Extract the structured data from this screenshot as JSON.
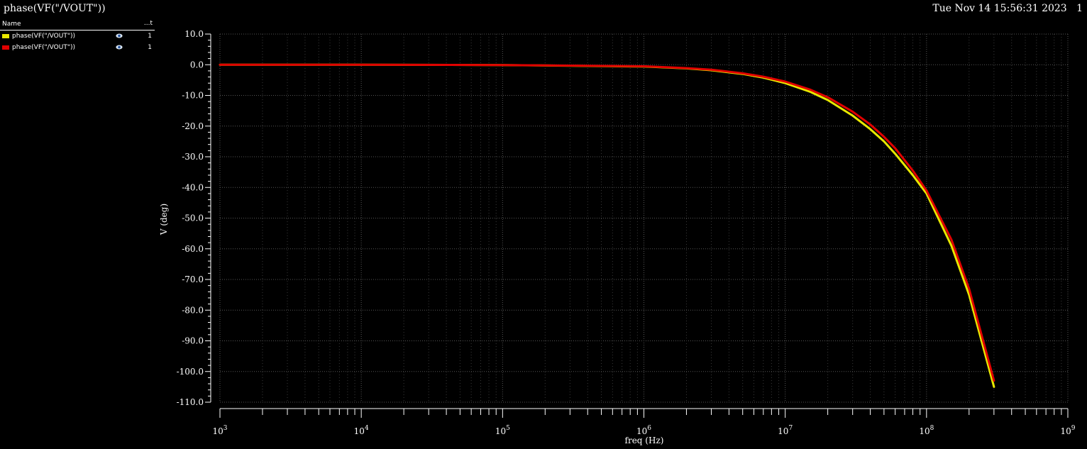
{
  "header": {
    "title": "phase(VF(\"/VOUT\"))",
    "timestamp": "Tue Nov 14 15:56:31 2023",
    "subwindow": "1"
  },
  "legend": {
    "name_header": "Name",
    "col_header": "...t",
    "items": [
      {
        "label": "phase(VF(\"/VOUT\"))",
        "color": "#e8e800",
        "count": "1",
        "icon": "eye-icon"
      },
      {
        "label": "phase(VF(\"/VOUT\"))",
        "color": "#e00000",
        "count": "1",
        "icon": "eye-icon"
      }
    ]
  },
  "chart_data": {
    "type": "line",
    "xscale": "log",
    "xlabel": "freq (Hz)",
    "ylabel": "V (deg)",
    "xlim": [
      1000,
      1000000000
    ],
    "ylim": [
      -110,
      10
    ],
    "x_tick_labels": [
      {
        "base": "10",
        "exp": "3"
      },
      {
        "base": "10",
        "exp": "4"
      },
      {
        "base": "10",
        "exp": "5"
      },
      {
        "base": "10",
        "exp": "6"
      },
      {
        "base": "10",
        "exp": "7"
      },
      {
        "base": "10",
        "exp": "8"
      },
      {
        "base": "10",
        "exp": "9"
      }
    ],
    "y_ticks": [
      10,
      0,
      -10,
      -20,
      -30,
      -40,
      -50,
      -60,
      -70,
      -80,
      -90,
      -100,
      -110
    ],
    "y_tick_labels": [
      "10.0",
      "0.0",
      "-10.0",
      "-20.0",
      "-30.0",
      "-40.0",
      "-50.0",
      "-60.0",
      "-70.0",
      "-80.0",
      "-90.0",
      "-100.0",
      "-110.0"
    ],
    "grid": true,
    "x": [
      1000,
      10000,
      100000,
      1000000,
      2000000,
      3000000,
      5000000,
      7000000,
      10000000,
      15000000,
      20000000,
      30000000,
      40000000,
      50000000,
      60000000,
      80000000,
      100000000,
      150000000,
      200000000,
      300000000
    ],
    "series": [
      {
        "color": "#e8e800",
        "values": [
          0,
          0,
          -0.1,
          -0.6,
          -1.2,
          -1.8,
          -3,
          -4.2,
          -6,
          -8.8,
          -11.5,
          -16.6,
          -21,
          -25,
          -29,
          -36,
          -42,
          -59,
          -75,
          -105
        ]
      },
      {
        "color": "#e00000",
        "values": [
          0,
          0,
          -0.1,
          -0.5,
          -1.1,
          -1.6,
          -2.8,
          -3.9,
          -5.5,
          -8.1,
          -10.6,
          -15.3,
          -19.5,
          -23.5,
          -27.2,
          -34.5,
          -41,
          -57,
          -73,
          -103
        ]
      }
    ]
  }
}
